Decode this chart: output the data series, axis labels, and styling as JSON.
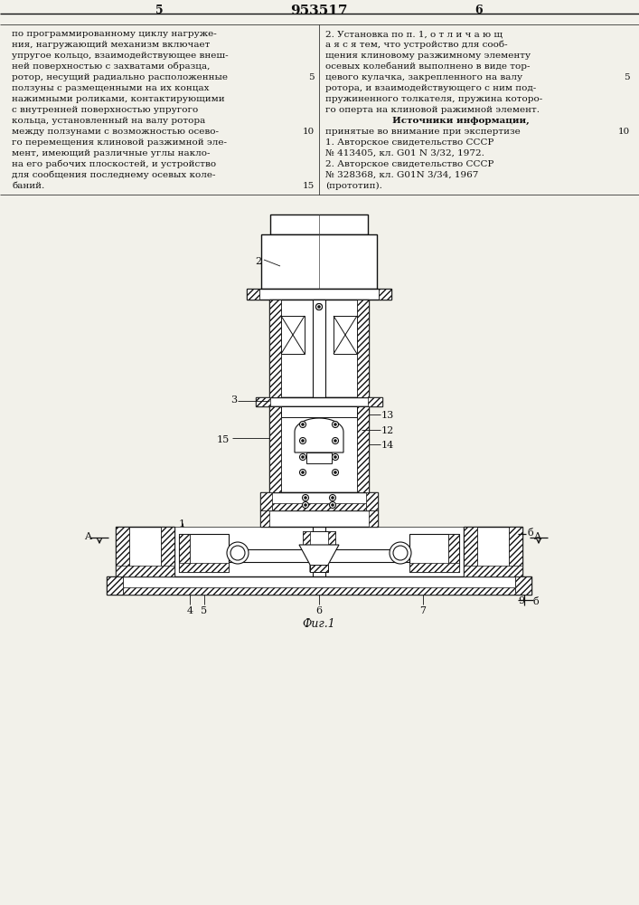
{
  "bg_color": "#f2f1ea",
  "line_color": "#111111",
  "title_text": "953517",
  "left_col_num": "5",
  "right_col_num": "6",
  "fig_caption": "Фиг.1",
  "left_text": [
    "по программированному циклу нагруже-",
    "ния, нагружающий механизм включает",
    "упругое кольцо, взаимодействующее внеш-",
    "ней поверхностью с захватами образца,",
    "ротор, несущий радиально расположенные",
    "ползуны с размещенными на их концах",
    "нажимными роликами, контактирующими",
    "с внутренней поверхностью упругого",
    "кольца, установленный на валу ротора",
    "между ползунами с возможностью осево-",
    "го перемещения клиновой разжимной эле-",
    "мент, имеющий различные углы накло-",
    "на его рабочих плоскостей, и устройство",
    "для сообщения последнему осевых коле-",
    "баний."
  ],
  "right_text": [
    "2. Установка по п. 1, о т л и ч а ю щ",
    "а я с я тем, что устройство для сооб-",
    "щения клиновому разжимному элементу",
    "осевых колебаний выполнено в виде тор-",
    "цевого кулачка, закрепленного на валу",
    "ротора, и взаимодействующего с ним под-",
    "пружиненного толкателя, пружина которо-",
    "го оперта на клиновой ражимной элемент.",
    "Источники информации,",
    "принятые во внимание при экспертизе",
    "1. Авторское свидетельство СССР",
    "№ 413405, кл. G01 N 3/32, 1972.",
    "2. Авторское свидетельство СССР",
    "№ 328368, кл. G01N 3/34, 1967",
    "(прототип)."
  ],
  "line_nums_left": {
    "4": "5",
    "9": "10",
    "14": "15"
  },
  "line_nums_right": {
    "4": "5",
    "9": "10"
  }
}
